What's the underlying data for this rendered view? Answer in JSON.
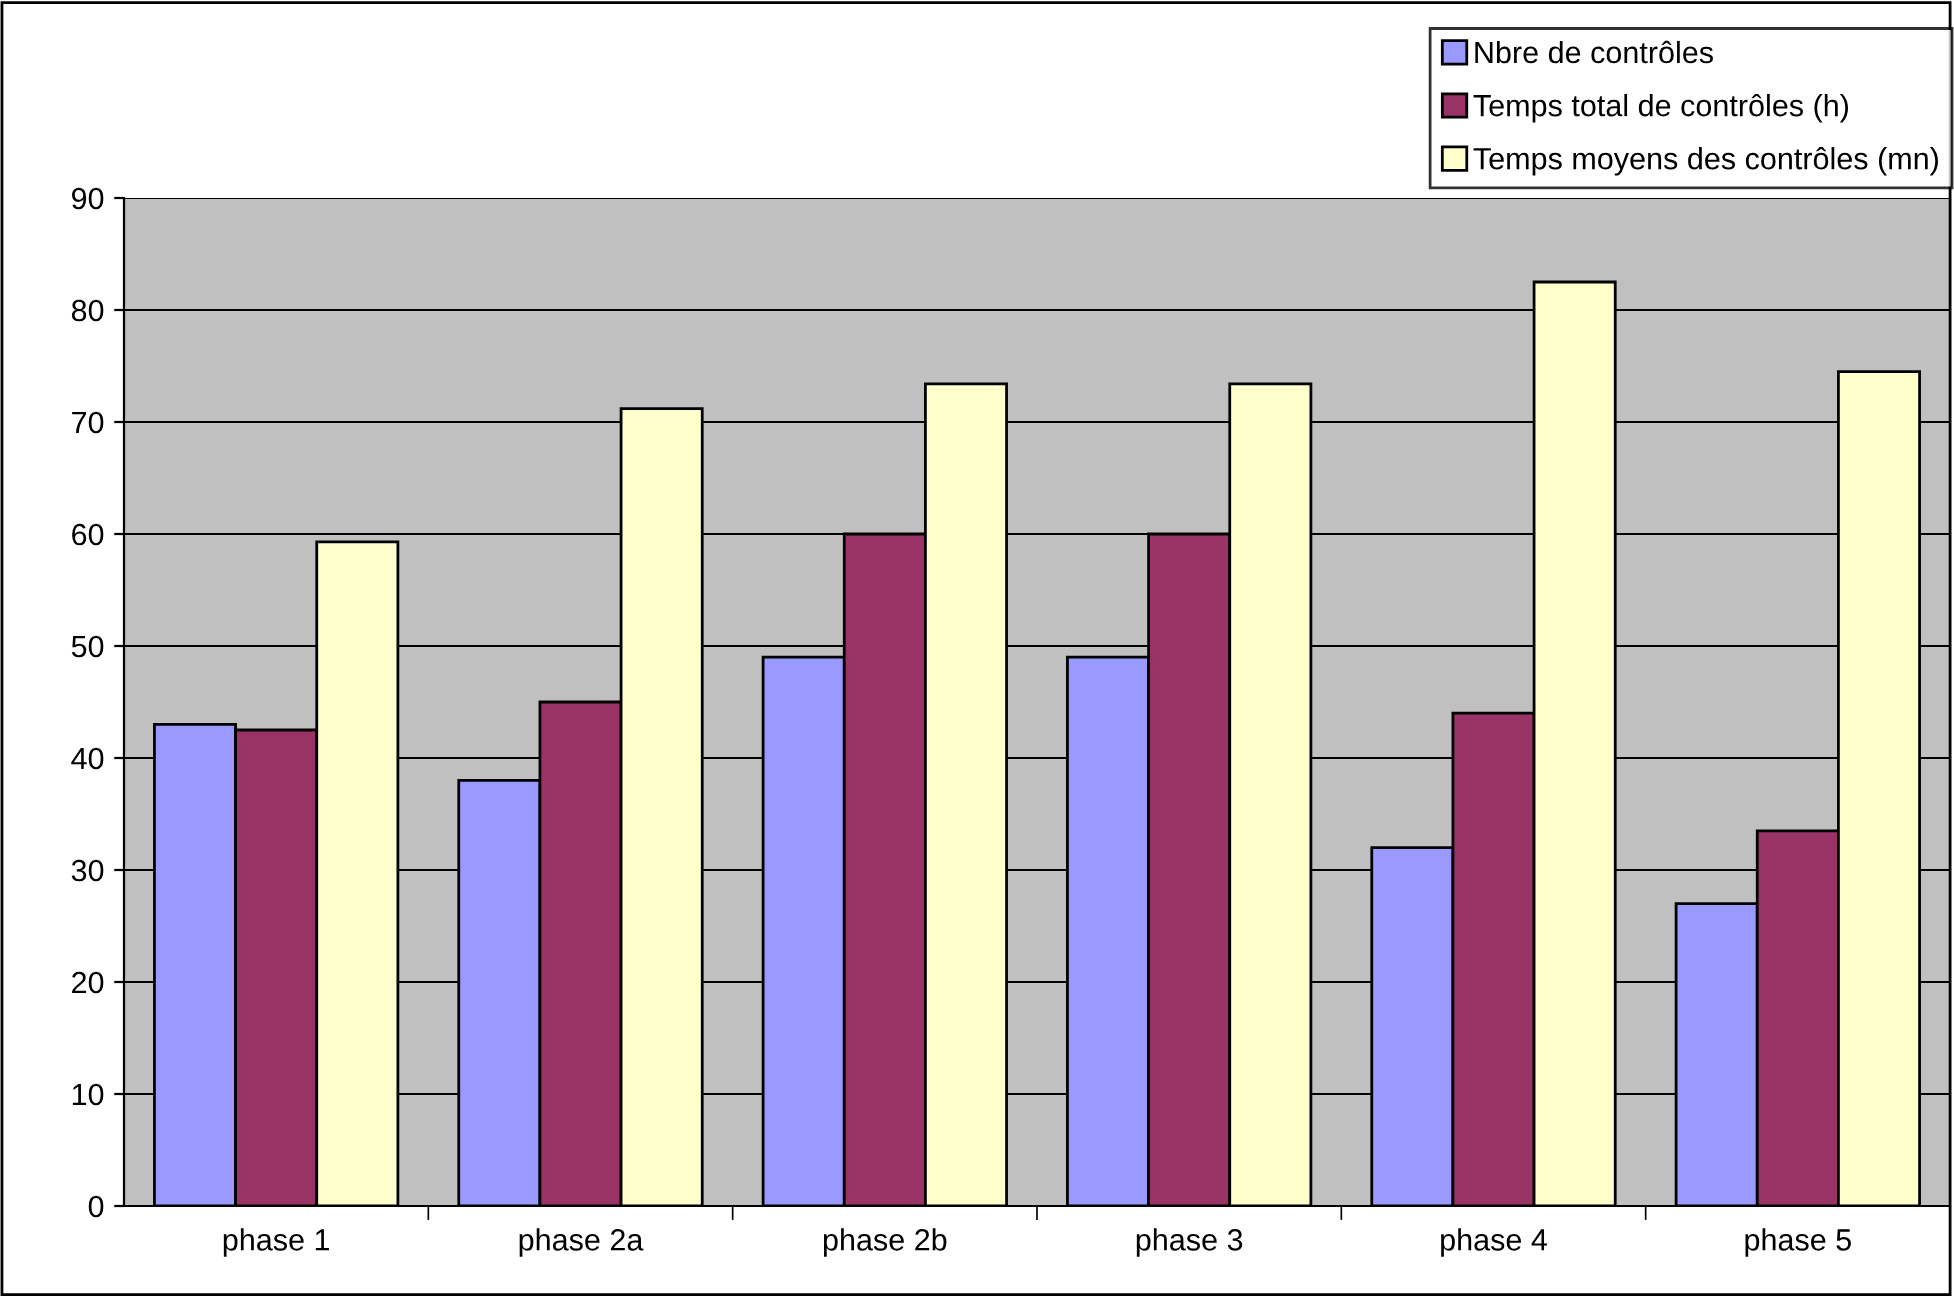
{
  "chart_data": {
    "type": "bar",
    "categories": [
      "phase 1",
      "phase 2a",
      "phase 2b",
      "phase 3",
      "phase 4",
      "phase 5"
    ],
    "series": [
      {
        "name": "Nbre de contrôles",
        "color": "#9999ff",
        "values": [
          43,
          38,
          49,
          49,
          32,
          27
        ]
      },
      {
        "name": "Temps total de contrôles (h)",
        "color": "#993366",
        "values": [
          42.5,
          45,
          60,
          60,
          44,
          33.5
        ]
      },
      {
        "name": "Temps moyens des contrôles (mn)",
        "color": "#ffffcc",
        "values": [
          59.3,
          71.2,
          73.4,
          73.4,
          82.5,
          74.5
        ]
      }
    ],
    "ylim": [
      0,
      90
    ],
    "yticks": [
      0,
      10,
      20,
      30,
      40,
      50,
      60,
      70,
      80,
      90
    ],
    "grid": "y",
    "legend": "top right"
  }
}
